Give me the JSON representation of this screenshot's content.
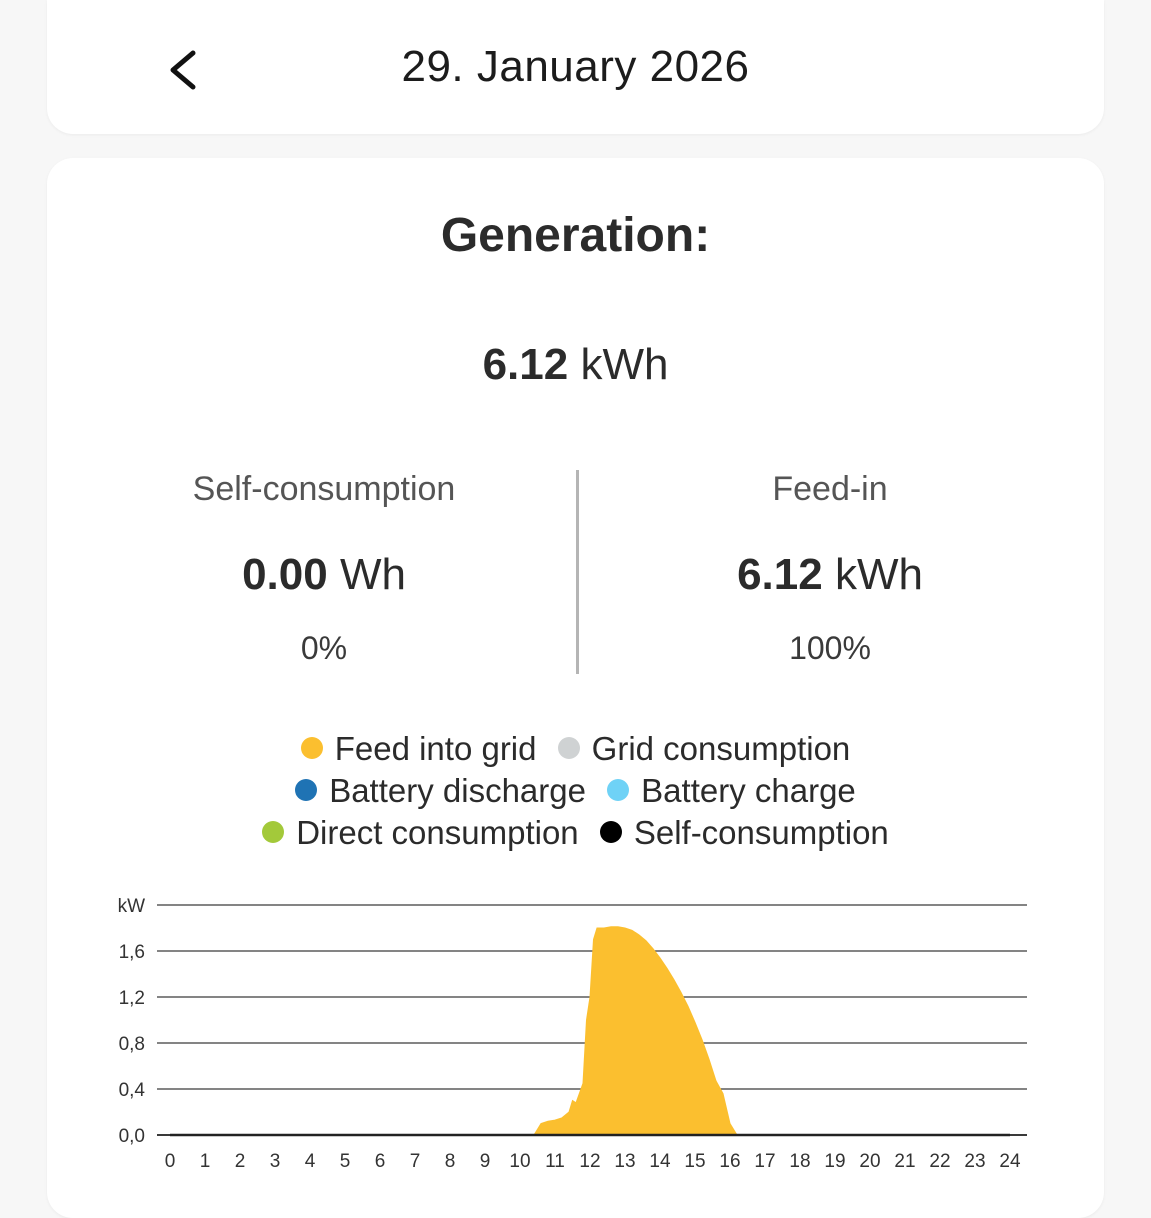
{
  "header": {
    "back_icon": "chevron-left-icon",
    "date": "29. January 2026"
  },
  "generation": {
    "title": "Generation:",
    "total_value": "6.12",
    "total_unit": "kWh"
  },
  "self_consumption": {
    "label": "Self-consumption",
    "value": "0.00",
    "unit": "Wh",
    "percent": "0%"
  },
  "feed_in": {
    "label": "Feed-in",
    "value": "6.12",
    "unit": "kWh",
    "percent": "100%"
  },
  "legend": [
    {
      "label": "Feed into grid",
      "color": "#fbbf2f"
    },
    {
      "label": "Grid consumption",
      "color": "#cfd2d3"
    },
    {
      "label": "Battery discharge",
      "color": "#1f73b4"
    },
    {
      "label": "Battery charge",
      "color": "#6fd2f6"
    },
    {
      "label": "Direct consumption",
      "color": "#a3c93a"
    },
    {
      "label": "Self-consumption",
      "color": "#000000"
    }
  ],
  "chart_data": {
    "type": "area",
    "ylabel": "kW",
    "ylim": [
      0,
      2.0
    ],
    "yticks": [
      "0,0",
      "0,4",
      "0,8",
      "1,2",
      "1,6"
    ],
    "xlim": [
      0,
      24
    ],
    "xticks": [
      "0",
      "1",
      "2",
      "3",
      "4",
      "5",
      "6",
      "7",
      "8",
      "9",
      "10",
      "11",
      "12",
      "13",
      "14",
      "15",
      "16",
      "17",
      "18",
      "19",
      "20",
      "21",
      "22",
      "23",
      "24"
    ],
    "grid": true,
    "series": [
      {
        "name": "Feed into grid",
        "color": "#fbbf2f",
        "x": [
          10.4,
          10.6,
          10.8,
          11.0,
          11.2,
          11.4,
          11.5,
          11.6,
          11.8,
          11.9,
          12.0,
          12.1,
          12.2,
          12.4,
          12.6,
          12.8,
          13.0,
          13.2,
          13.4,
          13.6,
          13.8,
          14.0,
          14.2,
          14.4,
          14.6,
          14.8,
          15.0,
          15.2,
          15.4,
          15.6,
          15.8,
          16.0,
          16.2
        ],
        "values": [
          0.0,
          0.1,
          0.12,
          0.13,
          0.15,
          0.2,
          0.3,
          0.28,
          0.45,
          1.0,
          1.2,
          1.7,
          1.8,
          1.8,
          1.81,
          1.81,
          1.8,
          1.78,
          1.74,
          1.69,
          1.62,
          1.54,
          1.45,
          1.35,
          1.24,
          1.12,
          0.98,
          0.83,
          0.66,
          0.47,
          0.36,
          0.1,
          0.0
        ]
      }
    ]
  }
}
